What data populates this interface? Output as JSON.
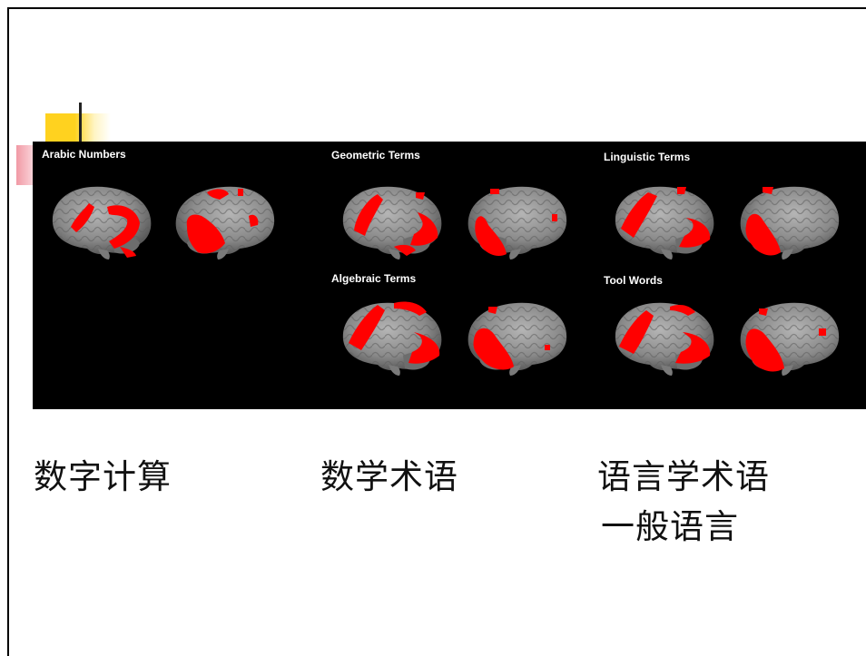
{
  "panel": {
    "labels": {
      "arabic": "Arabic Numbers",
      "geometric": "Geometric Terms",
      "linguistic": "Linguistic Terms",
      "algebraic": "Algebraic Terms",
      "tool": "Tool Words"
    }
  },
  "captions": {
    "left": "数字计算",
    "middle": "数学术语",
    "right_line1": "语言学术语",
    "right_line2": "一般语言"
  },
  "colors": {
    "background": "#ffffff",
    "panel": "#000000",
    "activation": "#ff0000",
    "cortex": "#8a8a8a",
    "accent_yellow": "#ffd21f"
  }
}
